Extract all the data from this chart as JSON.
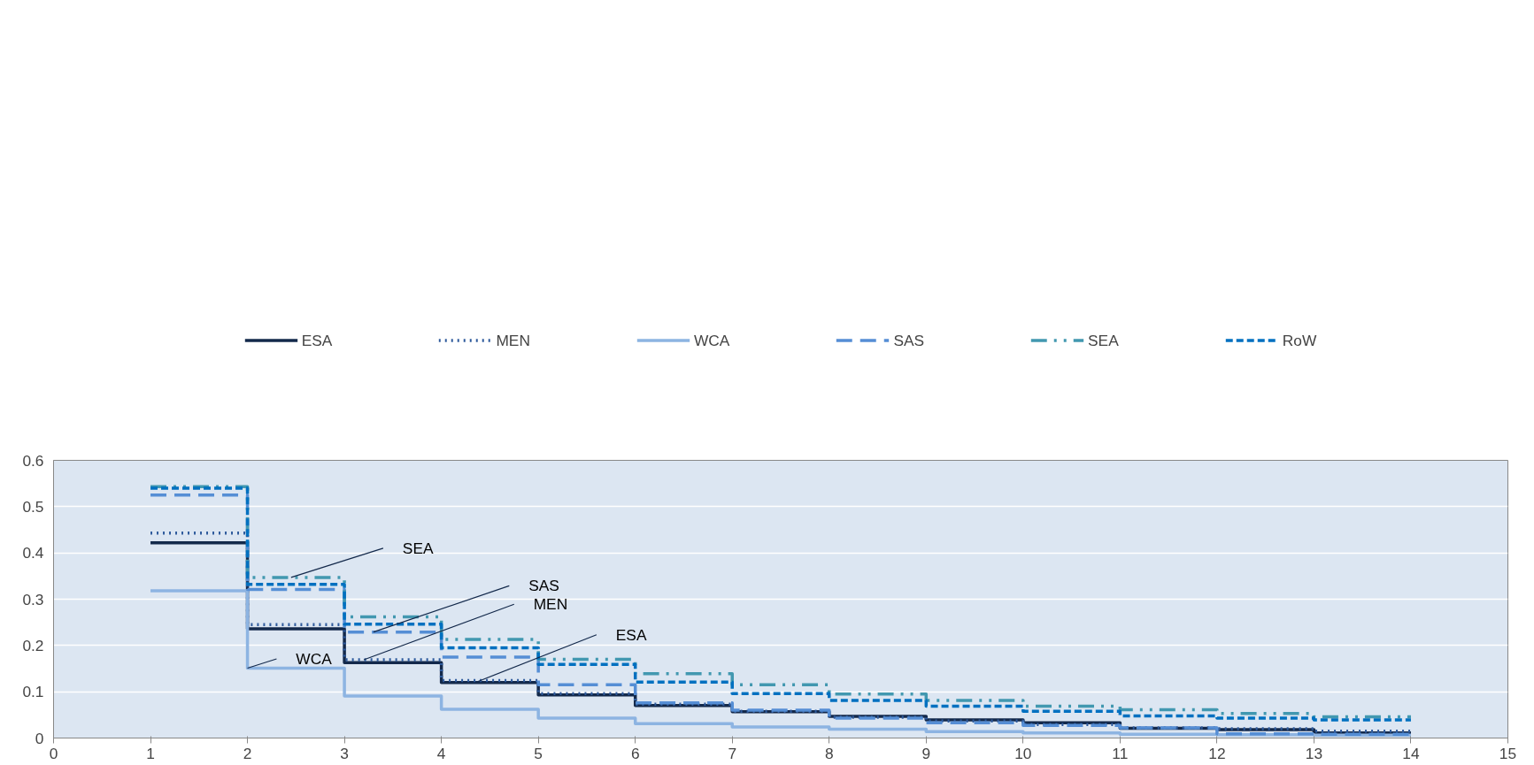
{
  "chart_data": {
    "type": "step",
    "x": [
      1,
      2,
      3,
      4,
      5,
      6,
      7,
      8,
      9,
      10,
      11,
      12,
      13,
      14
    ],
    "series": [
      {
        "name": "ESA",
        "color": "#13294b",
        "line_style": "solid",
        "values": [
          0.422,
          0.236,
          0.163,
          0.12,
          0.093,
          0.07,
          0.057,
          0.047,
          0.039,
          0.033,
          0.021,
          0.018,
          0.011,
          0.011
        ]
      },
      {
        "name": "MEN",
        "color": "#2e5a9c",
        "line_style": "dotted",
        "values": [
          0.443,
          0.245,
          0.169,
          0.124,
          0.096,
          0.073,
          0.058,
          0.045,
          0.037,
          0.029,
          0.022,
          0.02,
          0.015,
          0.015
        ]
      },
      {
        "name": "WCA",
        "color": "#8db4e2",
        "line_style": "solid",
        "values": [
          0.318,
          0.151,
          0.091,
          0.062,
          0.043,
          0.031,
          0.024,
          0.019,
          0.014,
          0.011,
          0.008,
          0.007,
          0.006,
          0.006
        ]
      },
      {
        "name": "SAS",
        "color": "#558ed5",
        "line_style": "longdash",
        "values": [
          0.525,
          0.321,
          0.229,
          0.175,
          0.115,
          0.076,
          0.06,
          0.043,
          0.033,
          0.027,
          0.022,
          0.009,
          0.008,
          0.008
        ]
      },
      {
        "name": "SEA",
        "color": "#4298b0",
        "line_style": "dashdotdot",
        "values": [
          0.543,
          0.347,
          0.262,
          0.213,
          0.17,
          0.139,
          0.115,
          0.095,
          0.081,
          0.069,
          0.061,
          0.053,
          0.046,
          0.046
        ]
      },
      {
        "name": "RoW",
        "color": "#0070c0",
        "line_style": "dashed",
        "values": [
          0.54,
          0.332,
          0.246,
          0.195,
          0.159,
          0.121,
          0.096,
          0.081,
          0.069,
          0.058,
          0.048,
          0.043,
          0.039,
          0.039
        ]
      }
    ],
    "annotations": [
      {
        "text": "SEA",
        "x": 2.45,
        "y": 0.347
      },
      {
        "text": "SAS",
        "x": 3.3,
        "y": 0.229
      },
      {
        "text": "MEN",
        "x": 3.2,
        "y": 0.169
      },
      {
        "text": "ESA",
        "x": 4.35,
        "y": 0.12
      },
      {
        "text": "WCA",
        "x": 2,
        "y": 0.151
      }
    ],
    "xlim": [
      0,
      15
    ],
    "xticks": [
      0,
      1,
      2,
      3,
      4,
      5,
      6,
      7,
      8,
      9,
      10,
      11,
      12,
      13,
      14,
      15
    ],
    "ylim": [
      0,
      0.6
    ],
    "yticks": [
      0,
      0.1,
      0.2,
      0.3,
      0.4,
      0.5,
      0.6
    ],
    "grid": "y",
    "legend": "top"
  }
}
